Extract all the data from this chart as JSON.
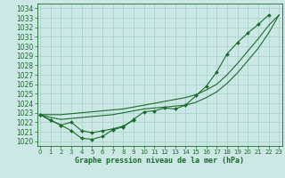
{
  "xlabel": "Graphe pression niveau de la mer (hPa)",
  "background_color": "#cce8e4",
  "grid_color": "#aad4ce",
  "line_color": "#1a6b2a",
  "ylim": [
    1019.5,
    1034.5
  ],
  "xlim": [
    -0.3,
    23.3
  ],
  "yticks": [
    1020,
    1021,
    1022,
    1023,
    1024,
    1025,
    1026,
    1027,
    1028,
    1029,
    1030,
    1031,
    1032,
    1033,
    1034
  ],
  "xticks": [
    0,
    1,
    2,
    3,
    4,
    5,
    6,
    7,
    8,
    9,
    10,
    11,
    12,
    13,
    14,
    15,
    16,
    17,
    18,
    19,
    20,
    21,
    22,
    23
  ],
  "y_marked": [
    1022.8,
    1022.2,
    1021.7,
    1021.1,
    1020.3,
    1020.2,
    1020.5,
    1021.2,
    1021.5,
    1022.3,
    1023.1,
    1023.2,
    1023.5,
    1023.4,
    1023.8,
    1024.8,
    1025.8,
    1027.3,
    1029.2,
    1030.4,
    1031.4,
    1032.3,
    1033.3,
    null
  ],
  "y_dip": [
    1022.8,
    1022.2,
    1021.7,
    1022.0,
    1021.1,
    1020.9,
    1021.1,
    1021.3,
    1021.6,
    1022.2,
    null,
    null,
    null,
    null,
    null,
    null,
    null,
    null,
    null,
    null,
    null,
    null,
    null,
    null
  ],
  "y_upper_smooth": [
    1022.8,
    1022.8,
    1022.8,
    1022.9,
    1023.0,
    1023.1,
    1023.2,
    1023.3,
    1023.4,
    1023.6,
    1023.8,
    1024.0,
    1024.2,
    1024.4,
    1024.6,
    1024.9,
    1025.4,
    1026.0,
    1027.0,
    1028.2,
    1029.5,
    1030.8,
    1032.2,
    1033.3
  ],
  "y_mid_smooth": [
    1022.8,
    1022.5,
    1022.3,
    1022.4,
    1022.5,
    1022.6,
    1022.7,
    1022.8,
    1023.0,
    1023.2,
    1023.4,
    1023.5,
    1023.6,
    1023.7,
    1023.8,
    1024.1,
    1024.6,
    1025.2,
    1026.1,
    1027.2,
    1028.5,
    1029.8,
    1031.4,
    1033.3
  ]
}
